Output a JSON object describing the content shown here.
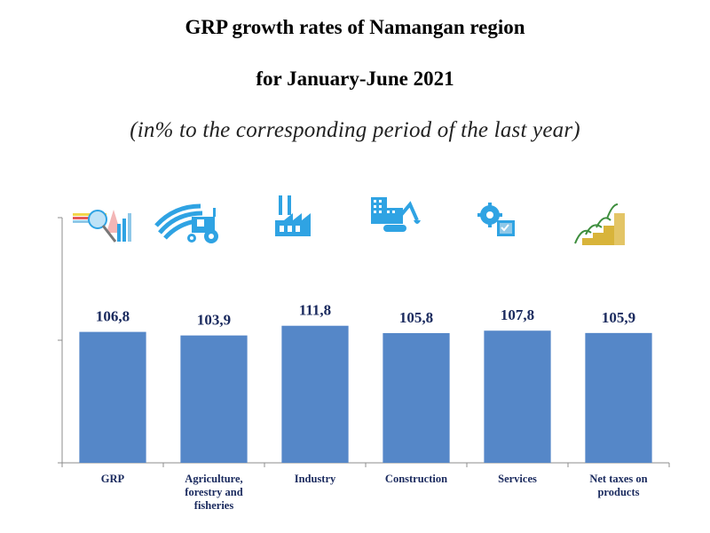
{
  "header": {
    "title_line1": "GRP growth rates of Namangan  region",
    "title_line2": "for January-June 2021",
    "subtitle": "(in% to the corresponding period of the last year)"
  },
  "colors": {
    "bar": "#5587C8",
    "label": "#1A2A5E",
    "axis": "#8C8C8C",
    "icon_blue": "#2FA3E3"
  },
  "chart_data": {
    "type": "bar",
    "title": "GRP growth rates of Namangan region for January-June 2021",
    "subtitle": "(in% to the corresponding period of the last year)",
    "xlabel": "",
    "ylabel": "",
    "ylim": [
      0,
      200
    ],
    "yticks": [
      0,
      100,
      200
    ],
    "ytick_labels_visible": false,
    "grid": false,
    "legend": "none",
    "categories": [
      [
        "GRP"
      ],
      [
        "Agriculture,",
        "forestry and",
        "fisheries"
      ],
      [
        "Industry"
      ],
      [
        "Construction"
      ],
      [
        "Services"
      ],
      [
        "Net taxes on",
        "products"
      ]
    ],
    "category_names": [
      "GRP",
      "Agriculture, forestry and fisheries",
      "Industry",
      "Construction",
      "Services",
      "Net taxes on products"
    ],
    "values": [
      106.8,
      103.9,
      111.8,
      105.8,
      107.8,
      105.9
    ],
    "value_labels": [
      "106,8",
      "103,9",
      "111,8",
      "105,8",
      "107,8",
      "105,9"
    ],
    "category_icons": [
      "analytics-magnifier-icon",
      "tractor-field-icon",
      "factory-icon",
      "construction-excavator-icon",
      "services-gear-icon",
      "coins-growth-icon"
    ]
  }
}
